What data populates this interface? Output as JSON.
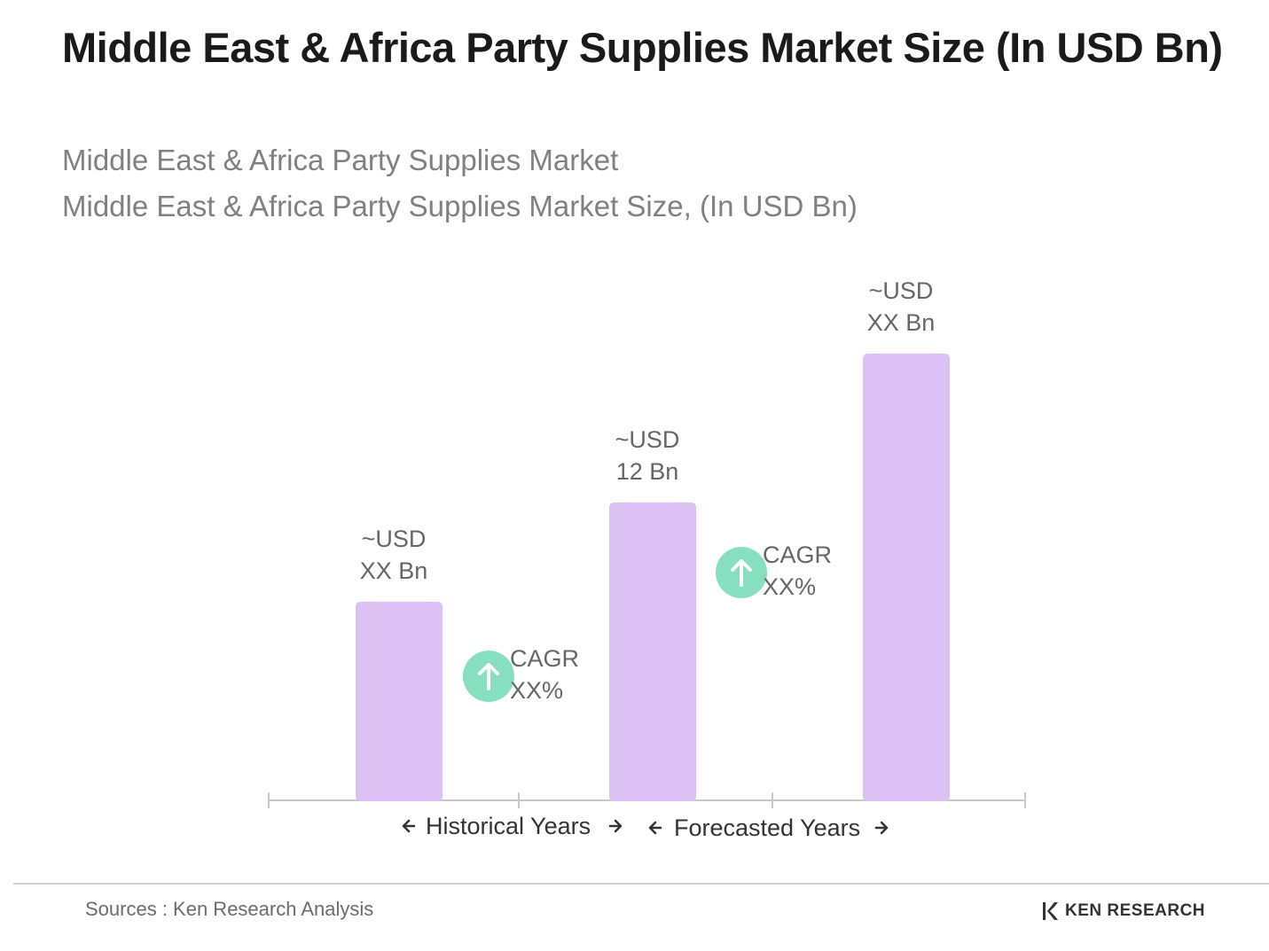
{
  "page": {
    "title": "Middle East & Africa Party Supplies Market Size (In USD Bn)",
    "subtitle_line1": "Middle East & Africa Party Supplies Market",
    "subtitle_line2": "Middle East & Africa Party Supplies Market Size, (In USD Bn)"
  },
  "footer": {
    "source": "Sources : Ken Research Analysis",
    "brand_name": "KEN RESEARCH"
  },
  "colors": {
    "bar": "#dcc1f5",
    "axis": "#c8c8c8",
    "cagr_circle": "#86e0c0",
    "label_text": "#666666",
    "period_text": "#333333"
  },
  "chart_data": {
    "type": "bar",
    "categories": [
      "",
      "",
      ""
    ],
    "values": [
      8,
      12,
      18
    ],
    "value_labels": [
      [
        "~USD",
        "XX Bn"
      ],
      [
        "~USD",
        "12 Bn"
      ],
      [
        "~USD",
        "XX Bn"
      ]
    ],
    "ylim": [
      0,
      20
    ],
    "cagr_labels": [
      [
        "CAGR",
        "XX%"
      ],
      [
        "CAGR",
        "XX%"
      ]
    ],
    "periods": [
      {
        "label": "Historical Years"
      },
      {
        "label": "Forecasted Years"
      }
    ],
    "grid": false,
    "legend": "none"
  }
}
